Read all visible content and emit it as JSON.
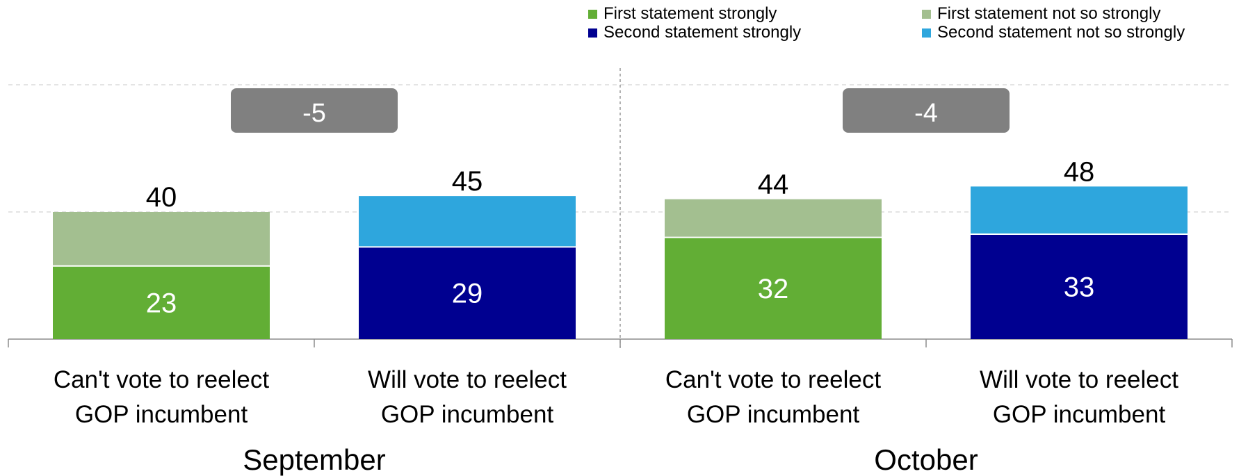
{
  "chart_data": {
    "type": "bar",
    "stacked": true,
    "legend": {
      "position": "top-right",
      "entries": [
        {
          "label": "First statement strongly",
          "color": "#62ae35"
        },
        {
          "label": "First statement not so strongly",
          "color": "#a3bf90"
        },
        {
          "label": "Second statement strongly",
          "color": "#000090"
        },
        {
          "label": "Second statement not so strongly",
          "color": "#2ea6dd"
        }
      ]
    },
    "groups": [
      {
        "label": "September",
        "difference_label": "-5",
        "bars": [
          {
            "category": [
              "Can't vote to reelect",
              "GOP incumbent"
            ],
            "strong": 23,
            "total": 40,
            "strong_color": "#62ae35",
            "weak_color": "#a3bf90"
          },
          {
            "category": [
              "Will vote to reelect",
              "GOP incumbent"
            ],
            "strong": 29,
            "total": 45,
            "strong_color": "#000090",
            "weak_color": "#2ea6dd"
          }
        ]
      },
      {
        "label": "October",
        "difference_label": "-4",
        "bars": [
          {
            "category": [
              "Can't vote to reelect",
              "GOP incumbent"
            ],
            "strong": 32,
            "total": 44,
            "strong_color": "#62ae35",
            "weak_color": "#a3bf90"
          },
          {
            "category": [
              "Will vote to reelect",
              "GOP incumbent"
            ],
            "strong": 33,
            "total": 48,
            "strong_color": "#000090",
            "weak_color": "#2ea6dd"
          }
        ]
      }
    ],
    "ylim": [
      0,
      80
    ],
    "gridlines": [
      40,
      80
    ],
    "difference_badge_color": "#808080"
  }
}
